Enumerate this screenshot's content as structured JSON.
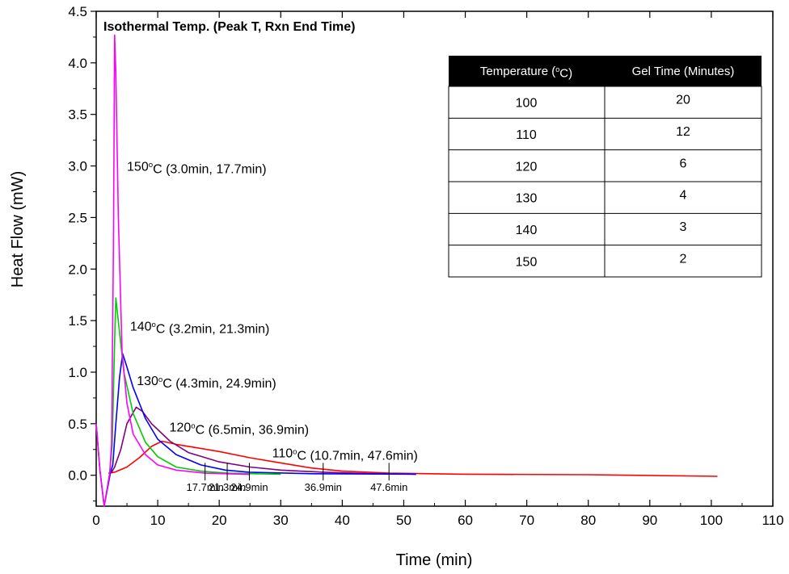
{
  "chart_data": {
    "type": "line",
    "title": "Isothermal Temp. (Peak T, Rxn End Time)",
    "xlabel": "Time (min)",
    "ylabel": "Heat Flow (mW)",
    "xlim": [
      0,
      110
    ],
    "ylim": [
      -0.3,
      4.5
    ],
    "x_ticks": [
      "0",
      "10",
      "20",
      "30",
      "40",
      "50",
      "60",
      "70",
      "80",
      "90",
      "100",
      "110"
    ],
    "y_ticks": [
      "0.0",
      "0.5",
      "1.0",
      "1.5",
      "2.0",
      "2.5",
      "3.0",
      "3.5",
      "4.0",
      "4.5"
    ],
    "grid": false,
    "series": [
      {
        "color": "#ff00ff",
        "points": [
          [
            0,
            0.5
          ],
          [
            0.6,
            0.05
          ],
          [
            1.3,
            -0.3
          ],
          [
            2.2,
            0.02
          ],
          [
            2.5,
            0.3
          ],
          [
            2.8,
            2.2
          ],
          [
            3.0,
            4.27
          ],
          [
            3.2,
            3.9
          ],
          [
            3.6,
            2.5
          ],
          [
            4.2,
            1.2
          ],
          [
            5,
            0.7
          ],
          [
            6,
            0.4
          ],
          [
            8,
            0.2
          ],
          [
            10,
            0.1
          ],
          [
            13,
            0.05
          ],
          [
            17.7,
            0.02
          ],
          [
            25,
            0.008
          ]
        ]
      },
      {
        "color": "#00cc00",
        "points": [
          [
            0,
            0.5
          ],
          [
            0.6,
            0.05
          ],
          [
            1.3,
            -0.3
          ],
          [
            2.2,
            0.02
          ],
          [
            2.6,
            0.3
          ],
          [
            3.0,
            1.3
          ],
          [
            3.2,
            1.72
          ],
          [
            3.5,
            1.55
          ],
          [
            4.5,
            1.0
          ],
          [
            6,
            0.6
          ],
          [
            8,
            0.32
          ],
          [
            10,
            0.18
          ],
          [
            13,
            0.08
          ],
          [
            17,
            0.04
          ],
          [
            21.3,
            0.02
          ],
          [
            30,
            0.01
          ]
        ]
      },
      {
        "color": "#0000ff",
        "points": [
          [
            0,
            0.5
          ],
          [
            0.6,
            0.05
          ],
          [
            1.3,
            -0.3
          ],
          [
            2.3,
            0.02
          ],
          [
            2.7,
            0.1
          ],
          [
            3.2,
            0.5
          ],
          [
            3.8,
            0.95
          ],
          [
            4.3,
            1.18
          ],
          [
            5,
            1.05
          ],
          [
            6,
            0.85
          ],
          [
            8,
            0.55
          ],
          [
            10,
            0.35
          ],
          [
            13,
            0.2
          ],
          [
            17,
            0.1
          ],
          [
            21,
            0.05
          ],
          [
            24.9,
            0.03
          ],
          [
            35,
            0.015
          ],
          [
            52,
            0.01
          ]
        ]
      },
      {
        "color": "#800080",
        "points": [
          [
            2.4,
            0.02
          ],
          [
            3,
            0.08
          ],
          [
            4,
            0.25
          ],
          [
            5,
            0.5
          ],
          [
            6.5,
            0.66
          ],
          [
            7.5,
            0.62
          ],
          [
            9,
            0.5
          ],
          [
            12,
            0.33
          ],
          [
            15,
            0.22
          ],
          [
            20,
            0.13
          ],
          [
            25,
            0.08
          ],
          [
            30,
            0.05
          ],
          [
            36.9,
            0.03
          ],
          [
            45,
            0.015
          ],
          [
            52,
            0.01
          ]
        ]
      },
      {
        "color": "#ff0000",
        "points": [
          [
            2,
            0.02
          ],
          [
            3,
            0.03
          ],
          [
            5,
            0.08
          ],
          [
            7,
            0.17
          ],
          [
            9,
            0.28
          ],
          [
            10.7,
            0.33
          ],
          [
            13,
            0.3
          ],
          [
            16,
            0.27
          ],
          [
            20,
            0.23
          ],
          [
            25,
            0.17
          ],
          [
            30,
            0.12
          ],
          [
            35,
            0.07
          ],
          [
            40,
            0.04
          ],
          [
            47.6,
            0.02
          ],
          [
            60,
            0.01
          ],
          [
            80,
            0.005
          ],
          [
            101,
            -0.01
          ]
        ]
      }
    ],
    "annotations": [
      {
        "text": "150oC (3.0min, 17.7min)",
        "x": 5,
        "y": 3.0
      },
      {
        "text": "140oC (3.2min, 21.3min)",
        "x": 5.5,
        "y": 1.45
      },
      {
        "text": "130oC (4.3min, 24.9min)",
        "x": 6.6,
        "y": 0.92
      },
      {
        "text": "120oC (6.5min, 36.9min)",
        "x": 11.9,
        "y": 0.47
      },
      {
        "text": "110oC (10.7min, 47.6min)",
        "x": 28.6,
        "y": 0.22
      }
    ],
    "reaction_end_markers": [
      {
        "x": 17.7,
        "label": "17.7min"
      },
      {
        "x": 21.3,
        "label": "21.3min"
      },
      {
        "x": 24.9,
        "label": "24.9min"
      },
      {
        "x": 36.9,
        "label": "36.9min"
      },
      {
        "x": 47.6,
        "label": "47.6min"
      }
    ],
    "table": {
      "headers": [
        "Temperature (oC)",
        "Gel Time (Minutes)"
      ],
      "rows": [
        [
          "100",
          "20"
        ],
        [
          "110",
          "12"
        ],
        [
          "120",
          "6"
        ],
        [
          "130",
          "4"
        ],
        [
          "140",
          "3"
        ],
        [
          "150",
          "2"
        ]
      ]
    }
  }
}
